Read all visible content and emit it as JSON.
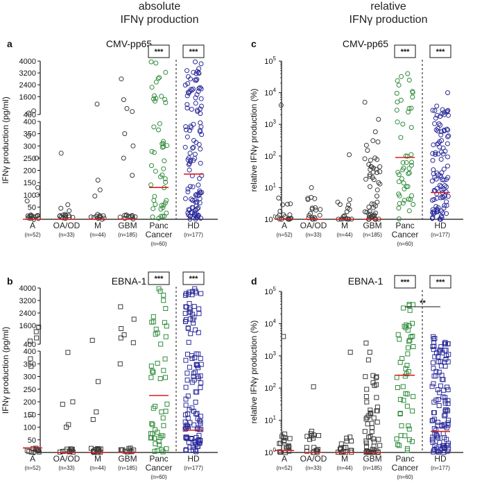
{
  "headers": {
    "left_line1": "absolute",
    "left_line2": "IFNγ production",
    "right_line1": "relative",
    "right_line2": "IFNγ production"
  },
  "colors": {
    "grey": "#3a3a3a",
    "green": "#2e8b3a",
    "blue": "#2a2a9a",
    "median": "#e01b1b"
  },
  "groups": [
    {
      "name": "A",
      "n": "(n=52)"
    },
    {
      "name": "OA/OD",
      "n": "(n=33)"
    },
    {
      "name": "M",
      "n": "(n=44)"
    },
    {
      "name": "GBM",
      "n": "(n=185)"
    },
    {
      "name": "Panc",
      "name2": "Cancer",
      "n": "(n=60)"
    },
    {
      "name": "HD",
      "n": "(n=177)"
    }
  ],
  "significance": "***",
  "significance_between": "**",
  "chart_data": [
    {
      "panel": "a",
      "title": "CMV-pp65",
      "type": "scatter",
      "scale": "broken-linear",
      "marker": "circle",
      "ylabel": "IFNγ production (pg/ml)",
      "ylim": [
        0,
        4000
      ],
      "break_at": 400,
      "upper_ticks": [
        "400",
        "1600",
        "2400",
        "3200",
        "4000"
      ],
      "lower_ticks": [
        "0",
        "50",
        "100",
        "150",
        "200",
        "250",
        "300",
        "350",
        "400"
      ],
      "medians": [
        0,
        0,
        0,
        0,
        130,
        185
      ],
      "series": [
        {
          "group": "A",
          "max": 650,
          "highs": [
            650,
            500,
            340,
            250,
            130,
            100,
            75
          ],
          "zero_frac": 0.65
        },
        {
          "group": "OA/OD",
          "max": 270,
          "highs": [
            270,
            60,
            45,
            35,
            20
          ],
          "zero_frac": 0.75
        },
        {
          "group": "M",
          "max": 1100,
          "highs": [
            1100,
            160,
            120,
            95,
            20
          ],
          "zero_frac": 0.8
        },
        {
          "group": "GBM",
          "max": 2800,
          "highs": [
            2800,
            1400,
            800,
            600,
            350,
            300,
            250,
            180
          ],
          "zero_frac": 0.6
        },
        {
          "group": "Panc Cancer",
          "max": 3950,
          "median": 130
        },
        {
          "group": "HD",
          "max": 3950,
          "median": 185
        }
      ]
    },
    {
      "panel": "b",
      "title": "EBNA-1",
      "type": "scatter",
      "scale": "broken-linear",
      "marker": "square",
      "ylabel": "IFNγ production (pg/ml)",
      "ylim": [
        0,
        4000
      ],
      "break_at": 400,
      "upper_ticks": [
        "400",
        "1600",
        "2400",
        "3200",
        "4000"
      ],
      "lower_ticks": [
        "0",
        "50",
        "100",
        "150",
        "200",
        "250",
        "300",
        "350",
        "400"
      ],
      "medians": [
        18,
        0,
        0,
        0,
        225,
        88
      ],
      "series": [
        {
          "group": "A",
          "max": 1500,
          "highs": [
            1500,
            1200,
            800,
            600,
            370,
            340,
            150
          ],
          "zero_frac": 0.3
        },
        {
          "group": "OA/OD",
          "max": 395,
          "highs": [
            395,
            200,
            190,
            110,
            100
          ],
          "zero_frac": 0.5
        },
        {
          "group": "M",
          "max": 650,
          "highs": [
            650,
            280,
            160,
            130
          ],
          "zero_frac": 0.5
        },
        {
          "group": "GBM",
          "max": 2800,
          "highs": [
            2800,
            2000,
            1400,
            1000,
            800,
            500,
            350
          ],
          "zero_frac": 0.3
        },
        {
          "group": "Panc Cancer",
          "max": 3950,
          "median": 225
        },
        {
          "group": "HD",
          "max": 3950,
          "median": 88
        }
      ]
    },
    {
      "panel": "c",
      "title": "CMV-pp65",
      "type": "scatter",
      "scale": "log",
      "marker": "circle",
      "ylabel": "relative IFNγ production (%)",
      "ylim": [
        1,
        100000
      ],
      "ticks": [
        1,
        10,
        100,
        1000,
        10000,
        100000
      ],
      "medians": [
        1,
        1,
        1,
        1,
        90,
        7
      ],
      "series": [
        {
          "group": "A",
          "max": 4000,
          "median": 1
        },
        {
          "group": "OA/OD",
          "max": 10,
          "median": 1
        },
        {
          "group": "M",
          "max": 110,
          "median": 1
        },
        {
          "group": "GBM",
          "max": 5000,
          "median": 1
        },
        {
          "group": "Panc Cancer",
          "max": 40000,
          "median": 90
        },
        {
          "group": "HD",
          "max": 10000,
          "median": 7
        }
      ]
    },
    {
      "panel": "d",
      "title": "EBNA-1",
      "type": "scatter",
      "scale": "log",
      "marker": "square",
      "ylabel": "relative IFNγ production (%)",
      "ylim": [
        1,
        100000
      ],
      "ticks": [
        1,
        10,
        100,
        1000,
        10000,
        100000
      ],
      "medians": [
        1.15,
        1,
        1,
        1,
        250,
        4.5
      ],
      "series": [
        {
          "group": "A",
          "max": 4000,
          "median": 1.15
        },
        {
          "group": "OA/OD",
          "max": 110,
          "median": 1
        },
        {
          "group": "M",
          "max": 1300,
          "median": 1
        },
        {
          "group": "GBM",
          "max": 2500,
          "median": 1
        },
        {
          "group": "Panc Cancer",
          "max": 40000,
          "median": 250
        },
        {
          "group": "HD",
          "max": 3500,
          "median": 4.5
        }
      ]
    }
  ]
}
